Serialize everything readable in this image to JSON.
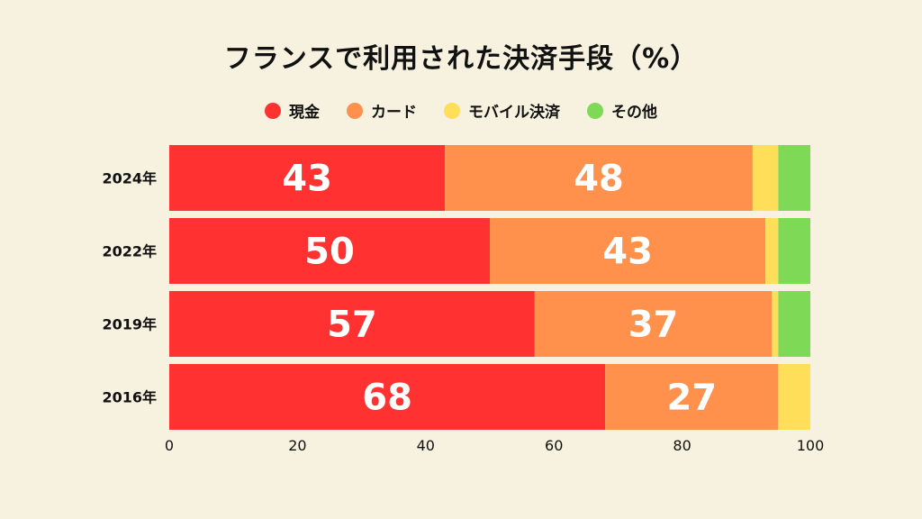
{
  "chart_data": {
    "type": "bar",
    "orientation": "horizontal",
    "stacked": true,
    "title": "フランスで利用された決済手段（%）",
    "categories": [
      "2024年",
      "2022年",
      "2019年",
      "2016年"
    ],
    "series": [
      {
        "name": "現金",
        "color": "#FF3131",
        "values": [
          43,
          50,
          57,
          68
        ]
      },
      {
        "name": "カード",
        "color": "#FF914D",
        "values": [
          48,
          43,
          37,
          27
        ]
      },
      {
        "name": "モバイル決済",
        "color": "#FFDE59",
        "values": [
          4,
          2,
          1,
          5
        ]
      },
      {
        "name": "その他",
        "color": "#7ED957",
        "values": [
          5,
          5,
          5,
          0
        ]
      }
    ],
    "data_labels_series": [
      "現金",
      "カード"
    ],
    "xlim": [
      0,
      100
    ],
    "xticks": [
      "0",
      "20",
      "40",
      "60",
      "80",
      "100"
    ],
    "legend_position": "top",
    "grid": false
  }
}
